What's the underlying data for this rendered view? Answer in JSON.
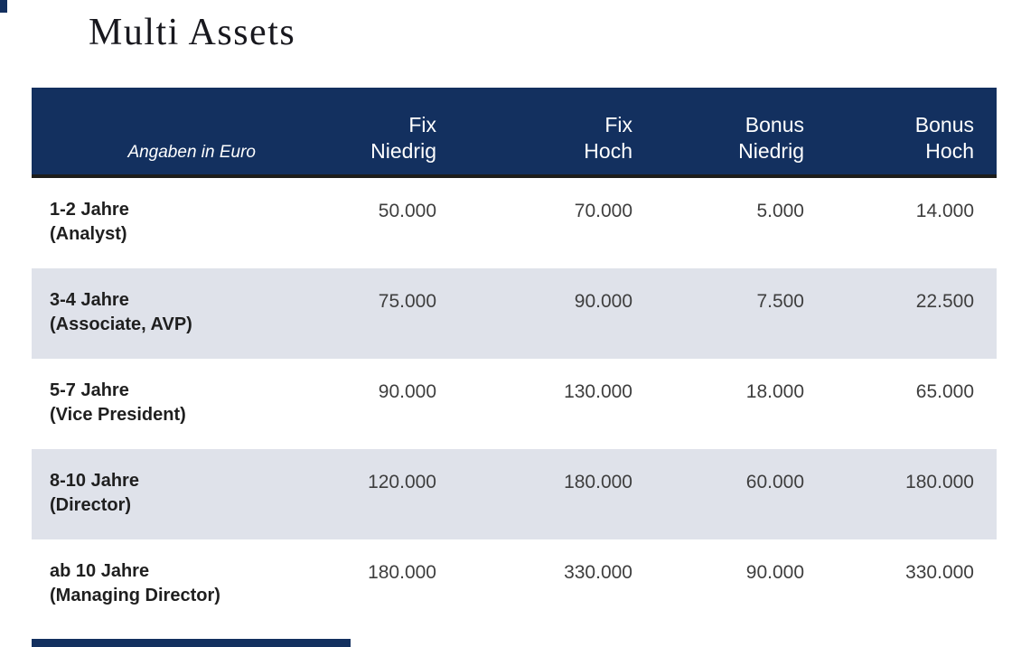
{
  "page": {
    "title": "Multi Assets"
  },
  "colors": {
    "header_bg": "#13305f",
    "header_border": "#1d1d1b",
    "alt_row_bg": "#dfe2ea",
    "label_text": "#1f1f1f",
    "value_text": "#3e3e3e",
    "title_text": "#18181e",
    "page_bg": "#ffffff",
    "header_text": "#ffffff"
  },
  "table": {
    "corner_label": "Angaben in Euro",
    "columns": [
      {
        "line1": "Fix",
        "line2": "Niedrig"
      },
      {
        "line1": "Fix",
        "line2": "Hoch"
      },
      {
        "line1": "Bonus",
        "line2": "Niedrig"
      },
      {
        "line1": "Bonus",
        "line2": "Hoch"
      }
    ],
    "rows": [
      {
        "years": "1-2 Jahre",
        "role": "(Analyst)",
        "values": [
          "50.000",
          "70.000",
          "5.000",
          "14.000"
        ]
      },
      {
        "years": "3-4 Jahre",
        "role": "(Associate, AVP)",
        "values": [
          "75.000",
          "90.000",
          "7.500",
          "22.500"
        ]
      },
      {
        "years": "5-7 Jahre",
        "role": "(Vice President)",
        "values": [
          "90.000",
          "130.000",
          "18.000",
          "65.000"
        ]
      },
      {
        "years": "8-10 Jahre",
        "role": "(Director)",
        "values": [
          "120.000",
          "180.000",
          "60.000",
          "180.000"
        ]
      },
      {
        "years": "ab 10 Jahre",
        "role": "(Managing Director)",
        "values": [
          "180.000",
          "330.000",
          "90.000",
          "330.000"
        ]
      }
    ]
  }
}
